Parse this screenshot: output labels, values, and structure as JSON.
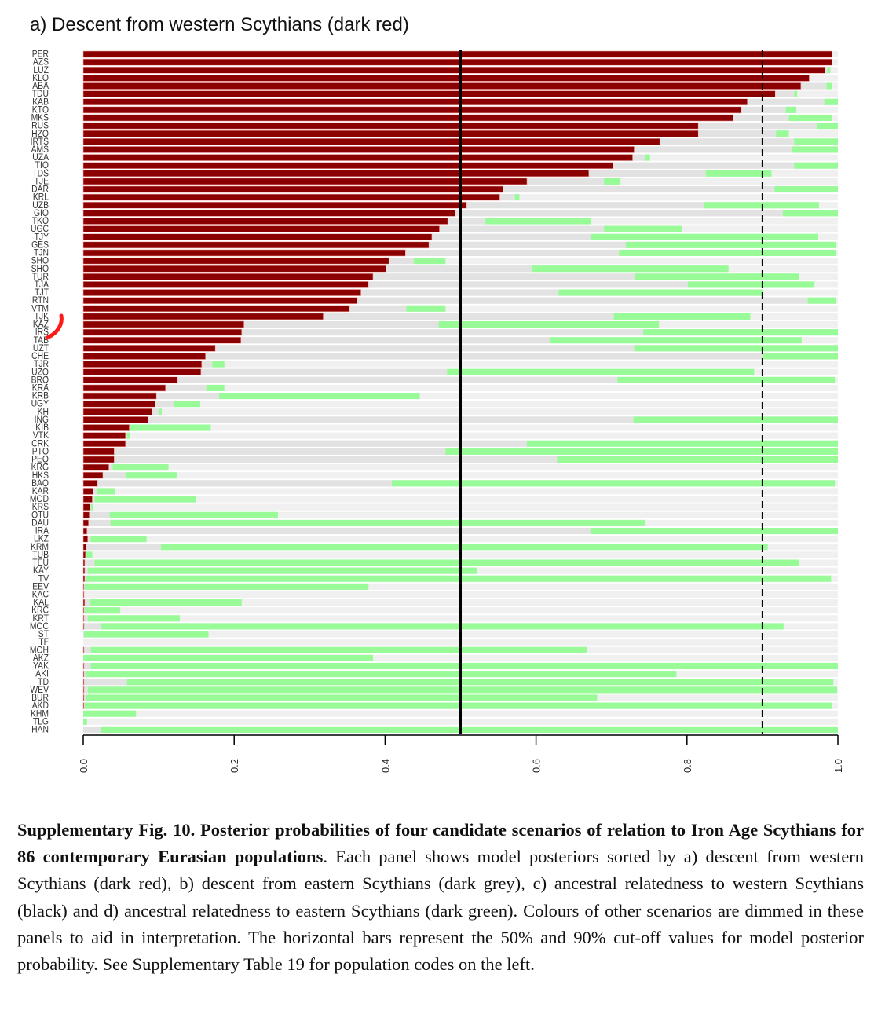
{
  "chart_data": {
    "type": "bar",
    "orientation": "horizontal-stacked",
    "title": "a) Descent from western Scythians (dark red)",
    "xlim": [
      0,
      1
    ],
    "xticks": [
      "0.0",
      "0.2",
      "0.4",
      "0.6",
      "0.8",
      "1.0"
    ],
    "xtick_values": [
      0,
      0.2,
      0.4,
      0.6,
      0.8,
      1.0
    ],
    "reference_lines": [
      {
        "value": 0.5,
        "style": "solid"
      },
      {
        "value": 0.9,
        "style": "dashed"
      }
    ],
    "colors": {
      "west_descent": "#8b0000",
      "dimmed_grey": "#e2e2e2",
      "dimmed_green": "#98fb98",
      "dimmed_light": "#f0f0f0"
    },
    "series_note": "each row: cumulative boundaries [dark red end, grey end, green end]; remainder light grey",
    "rows": [
      [
        "PER",
        0.992,
        0.992,
        0.992
      ],
      [
        "AZS",
        0.992,
        0.992,
        0.992
      ],
      [
        "LUZ",
        0.983,
        0.986,
        0.99
      ],
      [
        "KLQ",
        0.962,
        0.962,
        0.962
      ],
      [
        "ABA",
        0.951,
        0.985,
        0.992
      ],
      [
        "TDU",
        0.917,
        0.942,
        0.946
      ],
      [
        "KAB",
        0.88,
        0.982,
        1.0
      ],
      [
        "KTQ",
        0.872,
        0.931,
        0.945
      ],
      [
        "MKS",
        0.861,
        0.935,
        0.992
      ],
      [
        "RUS",
        0.815,
        0.972,
        1.0
      ],
      [
        "HZQ",
        0.815,
        0.918,
        0.935
      ],
      [
        "IRTS",
        0.764,
        0.942,
        1.0
      ],
      [
        "AMS",
        0.73,
        0.939,
        1.0
      ],
      [
        "UZA",
        0.728,
        0.745,
        0.751
      ],
      [
        "TIQ",
        0.702,
        0.942,
        1.0
      ],
      [
        "TDS",
        0.67,
        0.825,
        0.912
      ],
      [
        "TJE",
        0.588,
        0.69,
        0.712
      ],
      [
        "DAR",
        0.556,
        0.916,
        1.0
      ],
      [
        "KRL",
        0.552,
        0.572,
        0.578
      ],
      [
        "UZB",
        0.508,
        0.822,
        0.975
      ],
      [
        "GIQ",
        0.493,
        0.927,
        1.0
      ],
      [
        "TKQ",
        0.483,
        0.533,
        0.673
      ],
      [
        "UGC",
        0.472,
        0.69,
        0.794
      ],
      [
        "TJY",
        0.462,
        0.673,
        0.974
      ],
      [
        "GES",
        0.458,
        0.719,
        0.998
      ],
      [
        "TJN",
        0.427,
        0.71,
        0.997
      ],
      [
        "SHQ",
        0.405,
        0.438,
        0.48
      ],
      [
        "SHO",
        0.401,
        0.595,
        0.855
      ],
      [
        "TUR",
        0.384,
        0.731,
        0.948
      ],
      [
        "TJA",
        0.378,
        0.801,
        0.969
      ],
      [
        "TJT",
        0.368,
        0.63,
        0.901
      ],
      [
        "IRTN",
        0.363,
        0.96,
        0.998
      ],
      [
        "VTM",
        0.353,
        0.428,
        0.48
      ],
      [
        "TJK",
        0.318,
        0.703,
        0.884
      ],
      [
        "KAZ",
        0.213,
        0.471,
        0.763
      ],
      [
        "IRS",
        0.21,
        0.742,
        1.0
      ],
      [
        "TAB",
        0.209,
        0.618,
        0.952
      ],
      [
        "UZT",
        0.175,
        0.73,
        1.0
      ],
      [
        "CHE",
        0.162,
        0.9,
        1.0
      ],
      [
        "TJR",
        0.157,
        0.171,
        0.187
      ],
      [
        "UZQ",
        0.156,
        0.482,
        0.889
      ],
      [
        "BRQ",
        0.125,
        0.708,
        0.996
      ],
      [
        "KRA",
        0.109,
        0.163,
        0.187
      ],
      [
        "KRB",
        0.097,
        0.18,
        0.446
      ],
      [
        "UGY",
        0.095,
        0.12,
        0.155
      ],
      [
        "KH",
        0.091,
        0.1,
        0.104
      ],
      [
        "ING",
        0.086,
        0.729,
        1.0
      ],
      [
        "KIB",
        0.061,
        0.062,
        0.169
      ],
      [
        "VTK",
        0.056,
        0.058,
        0.062
      ],
      [
        "CRK",
        0.056,
        0.588,
        1.0
      ],
      [
        "PTQ",
        0.041,
        0.48,
        1.0
      ],
      [
        "PEQ",
        0.041,
        0.628,
        1.0
      ],
      [
        "KRG",
        0.034,
        0.039,
        0.113
      ],
      [
        "HKS",
        0.026,
        0.056,
        0.124
      ],
      [
        "BAQ",
        0.019,
        0.409,
        0.996
      ],
      [
        "KAR",
        0.013,
        0.018,
        0.042
      ],
      [
        "MOD",
        0.012,
        0.015,
        0.149
      ],
      [
        "KRS",
        0.009,
        0.01,
        0.013
      ],
      [
        "OTU",
        0.008,
        0.035,
        0.258
      ],
      [
        "DAU",
        0.007,
        0.036,
        0.745
      ],
      [
        "IRA",
        0.005,
        0.672,
        1.0
      ],
      [
        "LKZ",
        0.006,
        0.01,
        0.084
      ],
      [
        "KRM",
        0.004,
        0.103,
        0.907
      ],
      [
        "TUB",
        0.003,
        0.004,
        0.012
      ],
      [
        "TEU",
        0.002,
        0.015,
        0.948
      ],
      [
        "KAY",
        0.002,
        0.006,
        0.522
      ],
      [
        "TV",
        0.002,
        0.004,
        0.991
      ],
      [
        "EEV",
        0.001,
        0.002,
        0.378
      ],
      [
        "KAC",
        0.001,
        0.001,
        0.001
      ],
      [
        "KAL",
        0.002,
        0.008,
        0.21
      ],
      [
        "KRC",
        0.001,
        0.002,
        0.049
      ],
      [
        "KRT",
        0.001,
        0.006,
        0.128
      ],
      [
        "MOC",
        0.001,
        0.024,
        0.928
      ],
      [
        "ST",
        0.0,
        0.001,
        0.166
      ],
      [
        "TF",
        0.0,
        0.0,
        0.0
      ],
      [
        "MOH",
        0.001,
        0.01,
        0.667
      ],
      [
        "AKZ",
        0.0,
        0.0,
        0.384
      ],
      [
        "YAK",
        0.001,
        0.01,
        1.0
      ],
      [
        "AKI",
        0.001,
        0.003,
        0.786
      ],
      [
        "TD",
        0.001,
        0.058,
        0.994
      ],
      [
        "WEV",
        0.001,
        0.006,
        0.999
      ],
      [
        "BUR",
        0.001,
        0.004,
        0.681
      ],
      [
        "AKD",
        0.001,
        0.002,
        0.992
      ],
      [
        "KHM",
        0.0,
        0.0,
        0.07
      ],
      [
        "TLG",
        0.0,
        0.0,
        0.005
      ],
      [
        "HAN",
        0.0,
        0.023,
        1.0
      ]
    ]
  },
  "caption": {
    "bold": "Supplementary Fig. 10. Posterior probabilities of four candidate scenarios of relation to Iron Age Scythians for 86 contemporary Eurasian populations",
    "text": ". Each panel shows model posteriors sorted by a) descent from western Scythians (dark red), b) descent from eastern Scythians (dark grey), c) ancestral relatedness to western Scythians (black) and d) ancestral relatedness to eastern Scythians (dark green). Colours of other scenarios are dimmed in these panels to aid in interpretation. The horizontal bars represent the 50% and 90% cut-off values for model posterior probability. See Supplementary Table 19 for population codes on the left."
  }
}
